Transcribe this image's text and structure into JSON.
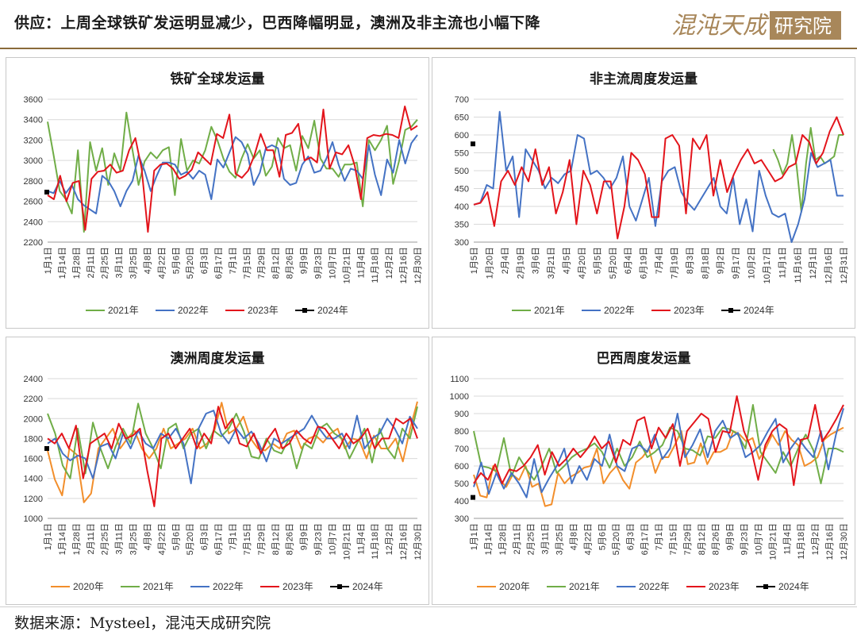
{
  "header": {
    "title": "供应：上周全球铁矿发运明显减少，巴西降幅明显，澳洲及非主流也小幅下降",
    "logo_text": "混沌天成研究院"
  },
  "footer": {
    "source": "数据来源：Mysteel，混沌天成研究院"
  },
  "colors": {
    "2020年": "#f28e2b",
    "2021年": "#70ad47",
    "2022年": "#4472c4",
    "2023年": "#e3141b",
    "2024年": "#000000"
  },
  "chart_data": [
    {
      "type": "line",
      "title": "铁矿全球发运量",
      "ylim": [
        2200,
        3600
      ],
      "yticks": [
        2200,
        2400,
        2600,
        2800,
        3000,
        3200,
        3400,
        3600
      ],
      "x_labels": [
        "1月1日",
        "1月14日",
        "1月28日",
        "2月11日",
        "2月25日",
        "3月11日",
        "3月25日",
        "4月8日",
        "4月22日",
        "5月6日",
        "5月20日",
        "6月3日",
        "6月17日",
        "7月1日",
        "7月15日",
        "7月29日",
        "8月12日",
        "8月26日",
        "9月9日",
        "9月23日",
        "10月7日",
        "10月21日",
        "11月4日",
        "11月18日",
        "12月2日",
        "12月16日",
        "12月30日"
      ],
      "legend": [
        "2021年",
        "2022年",
        "2023年",
        "2024年"
      ],
      "series": [
        {
          "name": "2021年",
          "values": [
            3380,
            3050,
            2700,
            2620,
            2480,
            3100,
            2300,
            3180,
            2900,
            3120,
            2760,
            3070,
            2900,
            3470,
            3100,
            2760,
            2990,
            3080,
            3020,
            3100,
            3130,
            2660,
            3210,
            2900,
            3000,
            2970,
            3100,
            3330,
            3200,
            3020,
            2890,
            2830,
            3020,
            3160,
            3020,
            3100,
            2850,
            2940,
            3220,
            3120,
            3150,
            2900,
            3240,
            3120,
            3390,
            3020,
            2920,
            2920,
            2840,
            2960,
            2960,
            2980,
            2550,
            3200,
            3100,
            3200,
            3340,
            2770,
            3000,
            3300,
            3330,
            3400
          ]
        },
        {
          "name": "2022年",
          "values": [
            2700,
            2680,
            2800,
            2680,
            2760,
            2620,
            2560,
            2520,
            2480,
            2850,
            2800,
            2700,
            2550,
            2700,
            2800,
            3050,
            2900,
            2700,
            2850,
            2980,
            2980,
            2960,
            2860,
            2890,
            2820,
            2900,
            2860,
            2620,
            3010,
            2930,
            3080,
            3230,
            3180,
            3060,
            2760,
            2880,
            3120,
            3150,
            3120,
            2820,
            2760,
            2780,
            2960,
            3040,
            2880,
            2900,
            3020,
            3180,
            2960,
            2800,
            2920,
            2900,
            2820,
            3150,
            2860,
            2660,
            3010,
            2880,
            3200,
            2970,
            3170,
            3250
          ]
        },
        {
          "name": "2023年",
          "values": [
            2660,
            2620,
            2850,
            2600,
            2780,
            2800,
            2320,
            2820,
            2890,
            2900,
            2960,
            2880,
            2900,
            3100,
            3220,
            2920,
            2300,
            2900,
            2960,
            2970,
            2920,
            2820,
            2850,
            2910,
            3080,
            3020,
            2960,
            3260,
            3220,
            3450,
            2870,
            2830,
            2900,
            3050,
            3260,
            3100,
            3100,
            2840,
            3250,
            3270,
            3360,
            3000,
            3030,
            2980,
            3500,
            2920,
            3080,
            3060,
            3150,
            2950,
            2620,
            3220,
            3250,
            3240,
            3260,
            3250,
            3220,
            3530,
            3300,
            3340
          ]
        },
        {
          "name": "2024年",
          "values": [
            2690
          ]
        }
      ]
    },
    {
      "type": "line",
      "title": "非主流周度发运量",
      "ylim": [
        300,
        700
      ],
      "yticks": [
        300,
        350,
        400,
        450,
        500,
        550,
        600,
        650,
        700
      ],
      "x_labels": [
        "1月5日",
        "1月20日",
        "2月4日",
        "2月19日",
        "3月6日",
        "3月21日",
        "4月5日",
        "4月20日",
        "5月5日",
        "5月20日",
        "6月4日",
        "6月19日",
        "7月4日",
        "7月19日",
        "8月3日",
        "8月18日",
        "9月2日",
        "9月17日",
        "10月2日",
        "10月17日",
        "11月1日",
        "11月16日",
        "12月1日",
        "12月16日",
        "12月31日"
      ],
      "legend": [
        "2021年",
        "2022年",
        "2023年",
        "2024年"
      ],
      "series": [
        {
          "name": "2021年",
          "values": [
            null,
            null,
            null,
            null,
            null,
            null,
            null,
            null,
            null,
            null,
            null,
            null,
            null,
            null,
            null,
            null,
            null,
            null,
            null,
            null,
            null,
            null,
            null,
            null,
            null,
            null,
            null,
            null,
            null,
            null,
            null,
            null,
            null,
            null,
            null,
            null,
            null,
            null,
            null,
            null,
            null,
            null,
            null,
            null,
            null,
            null,
            null,
            null,
            null,
            null,
            null,
            null,
            null,
            null,
            null,
            null,
            null,
            null,
            null,
            null,
            null,
            null,
            null,
            null,
            560,
            530,
            490,
            520,
            600,
            510,
            385,
            520,
            620,
            530,
            540,
            520,
            530,
            540,
            600,
            600
          ]
        },
        {
          "name": "2022年",
          "values": [
            405,
            410,
            460,
            450,
            665,
            500,
            540,
            370,
            560,
            530,
            500,
            450,
            480,
            465,
            490,
            500,
            600,
            590,
            490,
            500,
            480,
            450,
            480,
            540,
            400,
            360,
            420,
            480,
            345,
            470,
            500,
            510,
            440,
            410,
            390,
            420,
            450,
            480,
            400,
            380,
            480,
            350,
            420,
            330,
            500,
            430,
            380,
            370,
            380,
            300,
            350,
            420,
            550,
            510,
            520,
            530,
            430,
            430
          ]
        },
        {
          "name": "2023年",
          "values": [
            405,
            410,
            440,
            345,
            470,
            500,
            460,
            510,
            470,
            560,
            460,
            510,
            380,
            440,
            530,
            350,
            500,
            460,
            380,
            470,
            470,
            310,
            400,
            550,
            530,
            490,
            370,
            370,
            590,
            600,
            570,
            380,
            590,
            560,
            600,
            430,
            530,
            440,
            490,
            530,
            560,
            520,
            530,
            500,
            470,
            480,
            510,
            520,
            600,
            580,
            520,
            550,
            610,
            650,
            600
          ]
        },
        {
          "name": "2024年",
          "values": [
            575
          ]
        }
      ]
    },
    {
      "type": "line",
      "title": "澳洲周度发运量",
      "ylim": [
        1000,
        2400
      ],
      "yticks": [
        1000,
        1200,
        1400,
        1600,
        1800,
        2000,
        2200,
        2400
      ],
      "x_labels": [
        "1月1日",
        "1月14日",
        "1月28日",
        "2月11日",
        "2月25日",
        "3月11日",
        "3月25日",
        "4月8日",
        "4月22日",
        "5月6日",
        "5月20日",
        "6月3日",
        "6月17日",
        "7月1日",
        "7月15日",
        "7月29日",
        "8月12日",
        "8月26日",
        "9月9日",
        "9月23日",
        "10月7日",
        "10月21日",
        "11月4日",
        "11月18日",
        "12月2日",
        "12月16日",
        "12月30日"
      ],
      "legend": [
        "2020年",
        "2021年",
        "2022年",
        "2023年",
        "2024年"
      ],
      "series": [
        {
          "name": "2020年",
          "values": [
            1680,
            1390,
            1230,
            1700,
            1640,
            1160,
            1250,
            1700,
            1800,
            1900,
            1700,
            1800,
            1880,
            1700,
            1600,
            1700,
            1900,
            1700,
            1750,
            1800,
            1900,
            1700,
            1750,
            1880,
            2160,
            1850,
            1900,
            2020,
            1800,
            1700,
            1680,
            1750,
            1700,
            1850,
            1880,
            1700,
            1800,
            1830,
            1760,
            1850,
            1900,
            1700,
            1800,
            1780,
            1600,
            1830,
            1700,
            1700,
            1800,
            1570,
            1900,
            2170
          ]
        },
        {
          "name": "2021年",
          "values": [
            2050,
            1850,
            1530,
            1400,
            1900,
            1450,
            1960,
            1700,
            1500,
            1720,
            1900,
            1750,
            2150,
            1850,
            1700,
            1500,
            1900,
            1950,
            1700,
            1850,
            1900,
            1700,
            1880,
            1820,
            1900,
            2050,
            1870,
            1620,
            1600,
            1800,
            1680,
            1650,
            1800,
            1500,
            1750,
            1700,
            1900,
            1950,
            1850,
            1800,
            1600,
            1750,
            1900,
            1560,
            1900,
            1700,
            1600,
            1900,
            1800,
            2120
          ]
        },
        {
          "name": "2022年",
          "values": [
            1750,
            1800,
            1650,
            1580,
            1630,
            1600,
            1400,
            1720,
            1750,
            1600,
            1850,
            1700,
            1880,
            1750,
            1700,
            1850,
            1800,
            1900,
            1750,
            1350,
            1900,
            2050,
            2080,
            1850,
            1750,
            1900,
            1800,
            1870,
            1750,
            1570,
            1800,
            1750,
            1800,
            1850,
            1900,
            2030,
            1900,
            1800,
            1800,
            1850,
            1700,
            2030,
            1700,
            1800,
            1850,
            2000,
            1900,
            1750,
            2020,
            1900
          ]
        },
        {
          "name": "2023年",
          "values": [
            1800,
            1750,
            1850,
            1700,
            1930,
            1400,
            1750,
            1800,
            1850,
            1700,
            1950,
            1800,
            1830,
            1900,
            1480,
            1120,
            1800,
            1850,
            1700,
            1800,
            1900,
            1700,
            1850,
            1750,
            2120,
            1900,
            2000,
            1750,
            1720,
            1850,
            1650,
            1800,
            1900,
            1700,
            1750,
            1880,
            1800,
            1750,
            1920,
            1900,
            1800,
            1700,
            1850,
            1750,
            1800,
            1900,
            1700,
            1800,
            1800,
            2000,
            1950,
            2000,
            1800
          ]
        },
        {
          "name": "2024年",
          "values": [
            1700
          ]
        }
      ]
    },
    {
      "type": "line",
      "title": "巴西周度发运量",
      "ylim": [
        300,
        1100
      ],
      "yticks": [
        300,
        400,
        500,
        600,
        700,
        800,
        900,
        1000,
        1100
      ],
      "x_labels": [
        "1月1日",
        "1月14日",
        "1月28日",
        "2月11日",
        "2月25日",
        "3月11日",
        "3月25日",
        "4月8日",
        "4月22日",
        "5月6日",
        "5月20日",
        "6月3日",
        "6月17日",
        "7月1日",
        "7月15日",
        "7月29日",
        "8月12日",
        "8月26日",
        "9月9日",
        "9月23日",
        "10月7日",
        "10月21日",
        "11月4日",
        "11月18日",
        "12月2日",
        "12月16日",
        "12月30日"
      ],
      "legend": [
        "2020年",
        "2021年",
        "2022年",
        "2023年",
        "2024年"
      ],
      "series": [
        {
          "name": "2020年",
          "values": [
            550,
            430,
            420,
            600,
            520,
            480,
            550,
            520,
            600,
            480,
            500,
            370,
            380,
            560,
            500,
            540,
            560,
            590,
            600,
            700,
            500,
            560,
            600,
            520,
            470,
            620,
            650,
            700,
            560,
            650,
            650,
            720,
            800,
            610,
            620,
            730,
            610,
            680,
            680,
            700,
            800,
            780,
            740,
            760,
            640,
            700,
            780,
            720,
            800,
            750,
            720,
            600,
            620,
            650,
            750,
            780,
            800,
            820
          ]
        },
        {
          "name": "2021年",
          "values": [
            800,
            600,
            590,
            570,
            760,
            540,
            650,
            580,
            520,
            600,
            700,
            560,
            600,
            650,
            680,
            700,
            730,
            680,
            590,
            700,
            600,
            650,
            740,
            650,
            680,
            720,
            820,
            800,
            700,
            690,
            660,
            770,
            760,
            820,
            810,
            780,
            700,
            950,
            680,
            620,
            560,
            680,
            600,
            700,
            780,
            690,
            500,
            700,
            700,
            680
          ]
        },
        {
          "name": "2022年",
          "values": [
            480,
            620,
            440,
            560,
            470,
            560,
            500,
            420,
            640,
            450,
            530,
            600,
            700,
            500,
            600,
            520,
            640,
            600,
            780,
            600,
            570,
            700,
            720,
            680,
            780,
            640,
            700,
            900,
            650,
            720,
            810,
            650,
            800,
            860,
            760,
            790,
            650,
            680,
            720,
            800,
            870,
            620,
            700,
            760,
            700,
            650,
            800,
            580,
            780,
            930
          ]
        },
        {
          "name": "2023年",
          "values": [
            500,
            560,
            520,
            610,
            500,
            580,
            570,
            600,
            650,
            720,
            550,
            680,
            600,
            640,
            700,
            650,
            700,
            770,
            700,
            740,
            620,
            750,
            720,
            860,
            880,
            700,
            820,
            760,
            840,
            600,
            800,
            850,
            900,
            870,
            680,
            800,
            790,
            1000,
            800,
            700,
            520,
            720,
            800,
            840,
            810,
            490,
            750,
            760,
            950,
            740,
            800,
            870,
            950
          ]
        },
        {
          "name": "2024年",
          "values": [
            420
          ]
        }
      ]
    }
  ]
}
